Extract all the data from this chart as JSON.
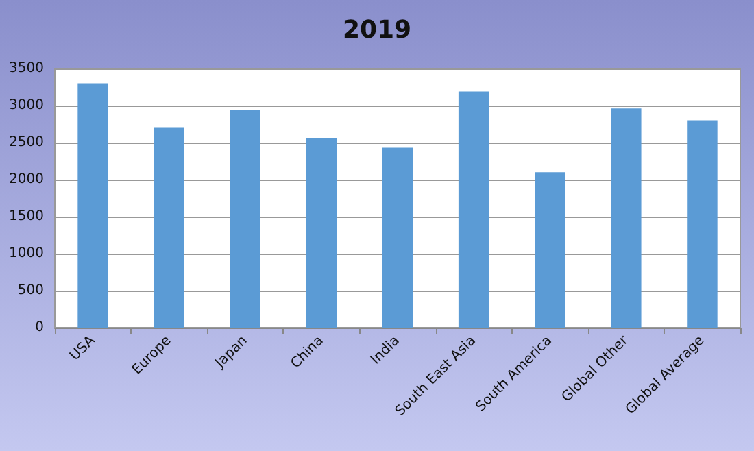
{
  "chart_data": {
    "type": "bar",
    "title": "2019",
    "categories": [
      "USA",
      "Europe",
      "Japan",
      "China",
      "India",
      "South East Asia",
      "South America",
      "Global Other",
      "Global Average"
    ],
    "values": [
      3300,
      2700,
      2940,
      2560,
      2430,
      3190,
      2100,
      2960,
      2800
    ],
    "color": "#5b9bd5",
    "ylim": [
      0,
      3500
    ],
    "yticks": [
      0,
      500,
      1000,
      1500,
      2000,
      2500,
      3000,
      3500
    ],
    "grid": "y"
  }
}
